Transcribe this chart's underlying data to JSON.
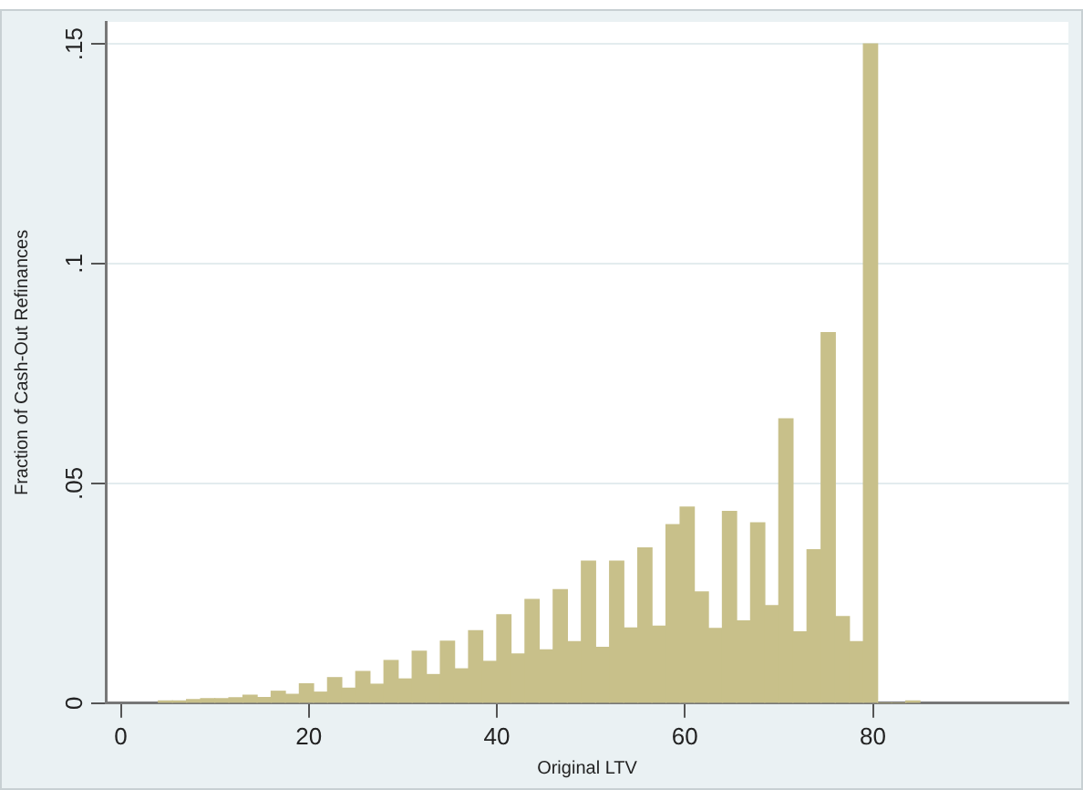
{
  "chart_data": {
    "type": "histogram",
    "xlabel": "Original LTV",
    "ylabel": "Fraction of Cash-Out Refinances",
    "color": "#c8c08a",
    "bins": [
      4,
      5.5,
      7,
      8.5,
      10,
      11.5,
      13,
      14.5,
      16,
      17.5,
      19,
      20.5,
      22,
      23.5,
      25,
      26.5,
      28,
      29.5,
      31,
      32.5,
      34,
      35.5,
      37,
      38.5,
      40,
      41.5,
      43,
      44.5,
      46,
      47.5,
      49,
      50.5,
      52,
      53.5,
      55,
      56.5,
      58,
      59.5,
      61,
      62.5,
      64,
      65.5,
      67,
      68.5,
      70,
      71.5,
      73,
      74.5,
      76,
      77.5,
      79,
      80.5,
      82,
      83.5,
      85
    ],
    "values": [
      0.0005,
      0.0005,
      0.0008,
      0.001,
      0.001,
      0.0012,
      0.0018,
      0.0013,
      0.0027,
      0.002,
      0.0044,
      0.0025,
      0.0058,
      0.0034,
      0.0072,
      0.0043,
      0.0097,
      0.0055,
      0.0118,
      0.0065,
      0.0141,
      0.0078,
      0.0165,
      0.0095,
      0.0201,
      0.0112,
      0.0236,
      0.0121,
      0.0258,
      0.014,
      0.0323,
      0.0127,
      0.0323,
      0.0171,
      0.0353,
      0.0175,
      0.0406,
      0.0446,
      0.0253,
      0.017,
      0.0436,
      0.0187,
      0.041,
      0.0222,
      0.0647,
      0.0162,
      0.0349,
      0.0843,
      0.0197,
      0.014,
      0.15,
      0,
      0,
      0.0005
    ],
    "xlim": [
      -1.6,
      100.8
    ],
    "xticks": [
      0,
      20,
      40,
      60,
      80
    ],
    "ylim": [
      0,
      0.155
    ],
    "yticks": [
      0,
      {
        "value": 0.05,
        "label": ".05"
      },
      {
        "value": 0.1,
        "label": ".1"
      },
      {
        "value": 0.15,
        "label": ".15"
      }
    ],
    "grid": "y",
    "legend": false
  }
}
